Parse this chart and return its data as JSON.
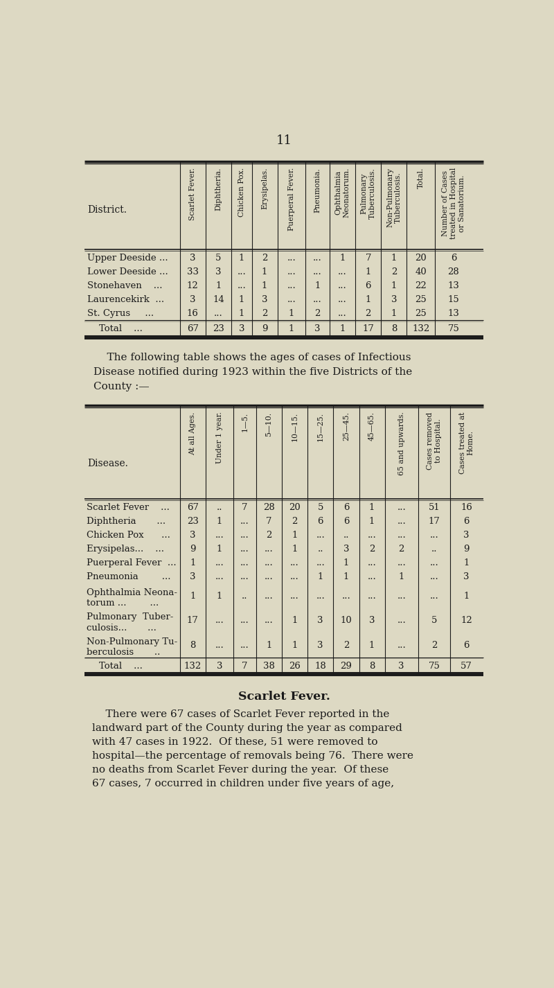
{
  "page_number": "11",
  "bg_color": "#ddd9c3",
  "text_color": "#1a1a1a",
  "table1_title_cols": [
    "Scarlet Fever.",
    "Diphtheria.",
    "Chicken Pox.",
    "Erysipelas.",
    "Puerperal Fever.",
    "Pneumonia.",
    "Ophthalmia\nNeonatorum.",
    "Pulmonary\nTuberculosis.",
    "Non-Pulmonary\nTuberculosis.",
    "Total.",
    "Number of Cases\ntreated in Hospital\nor Sanatorium."
  ],
  "table1_row_label": "District.",
  "table1_rows": [
    [
      "Upper Deeside ...",
      "3",
      "5",
      "1",
      "2",
      "...",
      "...",
      "1",
      "7",
      "1",
      "20",
      "6"
    ],
    [
      "Lower Deeside ...",
      "33",
      "3",
      "...",
      "1",
      "...",
      "...",
      "...",
      "1",
      "2",
      "40",
      "28"
    ],
    [
      "Stonehaven    ...",
      "12",
      "1",
      "...",
      "1",
      "...",
      "1",
      "...",
      "6",
      "1",
      "22",
      "13"
    ],
    [
      "Laurencekirk  ...",
      "3",
      "14",
      "1",
      "3",
      "...",
      "...",
      "...",
      "1",
      "3",
      "25",
      "15"
    ],
    [
      "St. Cyrus     ...",
      "16",
      "...",
      "1",
      "2",
      "1",
      "2",
      "...",
      "2",
      "1",
      "25",
      "13"
    ]
  ],
  "table1_total": [
    "Total    ...",
    "67",
    "23",
    "3",
    "9",
    "1",
    "3",
    "1",
    "17",
    "8",
    "132",
    "75"
  ],
  "intertext_lines": [
    "    The following table shows the ages of cases of Infectious",
    "Disease notified during 1923 within the five Districts of the",
    "County :—"
  ],
  "table2_title_cols": [
    "At all Ages.",
    "Under 1 year.",
    "1—5.",
    "5—10.",
    "10—15.",
    "15—25.",
    "25—45.",
    "45—65.",
    "65 and upwards.",
    "Cases removed\nto Hospital.",
    "Cases treated at\nHome."
  ],
  "table2_row_label": "Disease.",
  "table2_rows": [
    [
      "Scarlet Fever    ...",
      "67",
      "..",
      "7",
      "28",
      "20",
      "5",
      "6",
      "1",
      "...",
      "51",
      "16"
    ],
    [
      "Diphtheria       ...",
      "23",
      "1",
      "...",
      "7",
      "2",
      "6",
      "6",
      "1",
      "...",
      "17",
      "6"
    ],
    [
      "Chicken Pox      ...",
      "3",
      "...",
      "...",
      "2",
      "1",
      "...",
      "..",
      "...",
      "...",
      "...",
      "3"
    ],
    [
      "Erysipelas...    ...",
      "9",
      "1",
      "...",
      "...",
      "1",
      "..",
      "3",
      "2",
      "2",
      "..",
      "9"
    ],
    [
      "Puerperal Fever  ...",
      "1",
      "...",
      "...",
      "...",
      "...",
      "...",
      "1",
      "...",
      "...",
      "...",
      "1"
    ],
    [
      "Pneumonia        ...",
      "3",
      "...",
      "...",
      "...",
      "...",
      "1",
      "1",
      "...",
      "1",
      "...",
      "3"
    ],
    [
      "Ophthalmia Neona-\ntorum ...        ...",
      "1",
      "1",
      "..",
      "...",
      "...",
      "...",
      "...",
      "...",
      "...",
      "...",
      "1"
    ],
    [
      "Pulmonary  Tuber-\nculosis...       ...",
      "17",
      "...",
      "...",
      "...",
      "1",
      "3",
      "10",
      "3",
      "...",
      "5",
      "12"
    ],
    [
      "Non-Pulmonary Tu-\nberculosis       ..",
      "8",
      "...",
      "...",
      "1",
      "1",
      "3",
      "2",
      "1",
      "...",
      "2",
      "6"
    ]
  ],
  "table2_total": [
    "Total    ...",
    "132",
    "3",
    "7",
    "38",
    "26",
    "18",
    "29",
    "8",
    "3",
    "75",
    "57"
  ],
  "scarlet_fever_title": "Scarlet Fever.",
  "scarlet_fever_lines": [
    "    There were 67 cases of Scarlet Fever reported in the",
    "landward part of the County during the year as compared",
    "with 47 cases in 1922.  Of these, 51 were removed to",
    "hospital—the percentage of removals being 76.  There were",
    "no deaths from Scarlet Fever during the year.  Of these",
    "67 cases, 7 occurred in children under five years of age,"
  ]
}
